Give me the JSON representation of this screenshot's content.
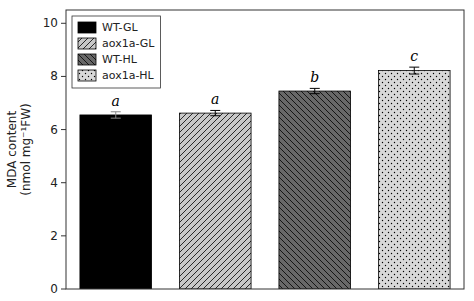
{
  "chart_data": {
    "type": "bar",
    "categories": [
      "WT-GL",
      "aox1a-GL",
      "WT-HL",
      "aox1a-HL"
    ],
    "values": [
      6.55,
      6.62,
      7.45,
      8.22
    ],
    "errors": [
      0.12,
      0.1,
      0.1,
      0.13
    ],
    "significance": [
      "a",
      "a",
      "b",
      "c"
    ],
    "colors": [
      "black",
      "#c8c8c8",
      "#686868",
      "#d8d8d8"
    ],
    "ylabel": [
      "MDA content",
      "(nmol mg⁻¹FW)"
    ],
    "ylim": [
      0,
      10.5
    ],
    "yticks": [
      0,
      2,
      4,
      6,
      8,
      10
    ],
    "grid": false,
    "legend": "upper left",
    "tick_labels": "y"
  }
}
